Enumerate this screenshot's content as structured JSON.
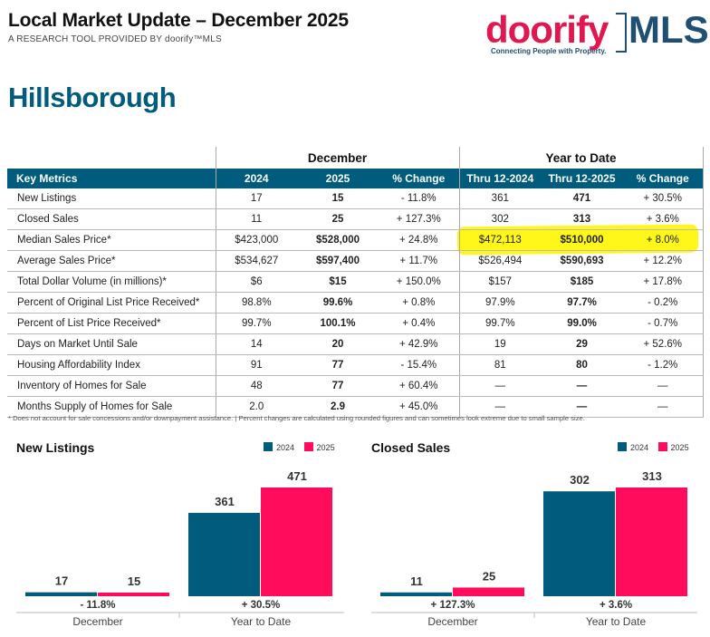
{
  "header": {
    "title": "Local Market Update – December 2025",
    "subtitle": "A RESEARCH TOOL PROVIDED BY doorify™MLS",
    "logo_word": "doorify",
    "logo_mls": "MLS",
    "logo_tagline": "Connecting People with Property."
  },
  "area": "Hillsborough",
  "table": {
    "group_headers": [
      "December",
      "Year to Date"
    ],
    "columns": [
      "Key Metrics",
      "2024",
      "2025",
      "% Change",
      "Thru 12-2024",
      "Thru 12-2025",
      "% Change"
    ],
    "rows": [
      [
        "New Listings",
        "17",
        "15",
        "- 11.8%",
        "361",
        "471",
        "+ 30.5%"
      ],
      [
        "Closed Sales",
        "11",
        "25",
        "+ 127.3%",
        "302",
        "313",
        "+ 3.6%"
      ],
      [
        "Median Sales Price*",
        "$423,000",
        "$528,000",
        "+ 24.8%",
        "$472,113",
        "$510,000",
        "+ 8.0%"
      ],
      [
        "Average Sales Price*",
        "$534,627",
        "$597,400",
        "+ 11.7%",
        "$526,494",
        "$590,693",
        "+ 12.2%"
      ],
      [
        "Total Dollar Volume (in millions)*",
        "$6",
        "$15",
        "+ 150.0%",
        "$157",
        "$185",
        "+ 17.8%"
      ],
      [
        "Percent of Original List Price Received*",
        "98.8%",
        "99.6%",
        "+ 0.8%",
        "97.9%",
        "97.7%",
        "- 0.2%"
      ],
      [
        "Percent of List Price Received*",
        "99.7%",
        "100.1%",
        "+ 0.4%",
        "99.7%",
        "99.0%",
        "- 0.7%"
      ],
      [
        "Days on Market Until Sale",
        "14",
        "20",
        "+ 42.9%",
        "19",
        "29",
        "+ 52.6%"
      ],
      [
        "Housing Affordability Index",
        "91",
        "77",
        "- 15.4%",
        "81",
        "80",
        "- 1.2%"
      ],
      [
        "Inventory of Homes for Sale",
        "48",
        "77",
        "+ 60.4%",
        "—",
        "—",
        "—"
      ],
      [
        "Months Supply of Homes for Sale",
        "2.0",
        "2.9",
        "+ 45.0%",
        "—",
        "—",
        "—"
      ]
    ],
    "highlighted_row": "Median Sales Price*",
    "footnote": "* Does not account for sale concessions and/or downpayment assistance. | Percent changes are calculated using rounded figures and can sometimes look extreme due to small sample size."
  },
  "colors": {
    "teal": "#005b7c",
    "pink": "#ff0d5c",
    "highlight": "#fff600"
  },
  "chart_data": [
    {
      "type": "bar",
      "title": "New Listings",
      "categories": [
        "December",
        "Year to Date"
      ],
      "series": [
        {
          "name": "2024",
          "values": [
            17,
            361
          ]
        },
        {
          "name": "2025",
          "values": [
            15,
            471
          ]
        }
      ],
      "change_labels": [
        "- 11.8%",
        "+ 30.5%"
      ],
      "legend": "top-right"
    },
    {
      "type": "bar",
      "title": "Closed Sales",
      "categories": [
        "December",
        "Year to Date"
      ],
      "series": [
        {
          "name": "2024",
          "values": [
            11,
            302
          ]
        },
        {
          "name": "2025",
          "values": [
            25,
            313
          ]
        }
      ],
      "change_labels": [
        "+ 127.3%",
        "+ 3.6%"
      ],
      "legend": "top-right"
    }
  ]
}
